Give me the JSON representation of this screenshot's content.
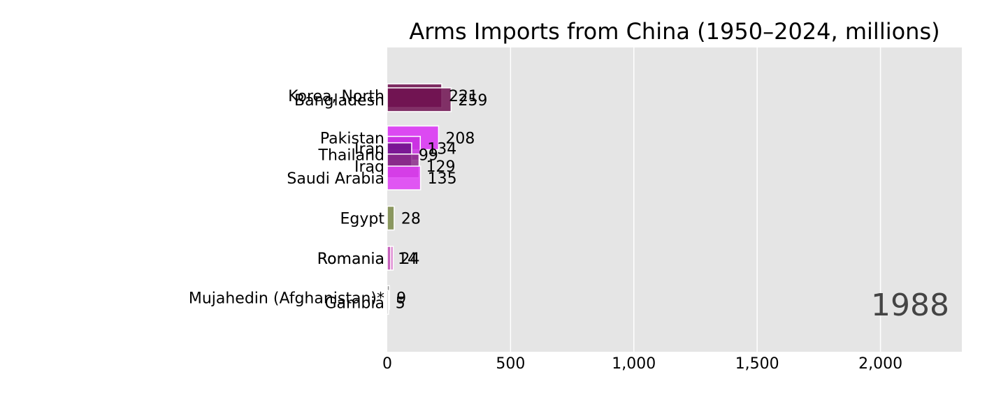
{
  "chart_data": {
    "type": "bar",
    "orientation": "horizontal",
    "title": "Arms Imports from China (1950–2024, millions)",
    "year": "1988",
    "xlim": [
      0,
      2330
    ],
    "x_ticks": [
      0,
      500,
      1000,
      1500,
      2000
    ],
    "x_tick_labels": [
      "0",
      "500",
      "1,000",
      "1,500",
      "2,000"
    ],
    "grid": true,
    "background": "#e5e5e5",
    "bars": [
      {
        "label": "Korea, North",
        "value_label": "221",
        "value": 221,
        "rank": 0.95,
        "color": "#6b0a4a"
      },
      {
        "label": "Bangladesh",
        "value_label": "259",
        "value": 259,
        "rank": 1.05,
        "color": "#6e1050"
      },
      {
        "label": "Pakistan",
        "value_label": "208",
        "value": 208,
        "rank": 2.0,
        "color": "#da2ef5"
      },
      {
        "label": "Iran",
        "value_label": "134",
        "value": 134,
        "rank": 2.26,
        "color": "#c82ee0"
      },
      {
        "label": "Thailand",
        "value_label": "99",
        "value": 99,
        "rank": 2.42,
        "color": "#6c1086"
      },
      {
        "label": "Iraq",
        "value_label": "129",
        "value": 129,
        "rank": 2.7,
        "color": "#8a2a88"
      },
      {
        "label": "Saudi Arabia",
        "value_label": "135",
        "value": 135,
        "rank": 3.0,
        "color": "#df3df6"
      },
      {
        "label": "Egypt",
        "value_label": "28",
        "value": 28,
        "rank": 4.0,
        "color": "#7a8a48"
      },
      {
        "label": "Romania",
        "value_label": "24",
        "value": 24,
        "rank": 5.0,
        "color": "#d868c8"
      },
      {
        "label": "Romania",
        "value_label": "14",
        "value": 14,
        "rank": 5.0,
        "color": "#c25fb8"
      },
      {
        "label": "Mujahedin (Afghanistan)*",
        "value_label": "9",
        "value": 9,
        "rank": 5.98,
        "color": "#8a8a8a"
      },
      {
        "label": "Gambia",
        "value_label": "5",
        "value": 5,
        "rank": 6.1,
        "color": "#555555"
      }
    ]
  }
}
